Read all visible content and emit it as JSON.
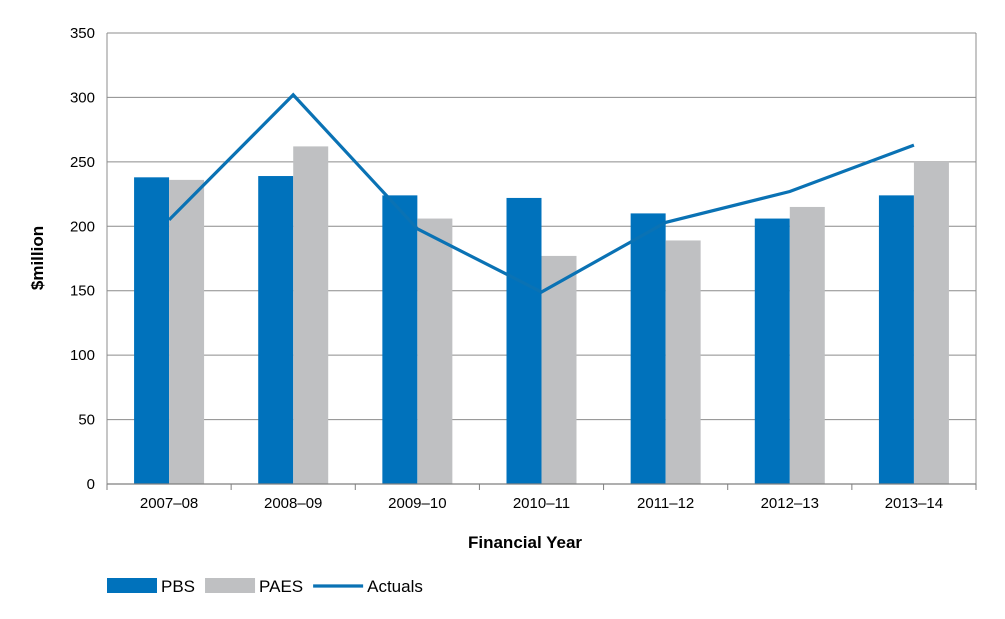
{
  "chart_data": {
    "type": "bar",
    "title": "",
    "xlabel": "Financial Year",
    "ylabel": "$million",
    "ylim": [
      0,
      350
    ],
    "yticks": [
      0,
      50,
      100,
      150,
      200,
      250,
      300,
      350
    ],
    "grid": true,
    "legend_position": "bottom-left",
    "categories": [
      "2007–08",
      "2008–09",
      "2009–10",
      "2010–11",
      "2011–12",
      "2012–13",
      "2013–14"
    ],
    "series": [
      {
        "name": "PBS",
        "type": "bar",
        "color": "#0072bc",
        "values": [
          238,
          239,
          224,
          222,
          210,
          206,
          224
        ]
      },
      {
        "name": "PAES",
        "type": "bar",
        "color": "#bfc0c2",
        "values": [
          236,
          262,
          206,
          177,
          189,
          215,
          250
        ]
      },
      {
        "name": "Actuals",
        "type": "line",
        "color": "#0a72b4",
        "values": [
          205,
          302,
          198,
          149,
          203,
          227,
          263
        ]
      }
    ]
  }
}
